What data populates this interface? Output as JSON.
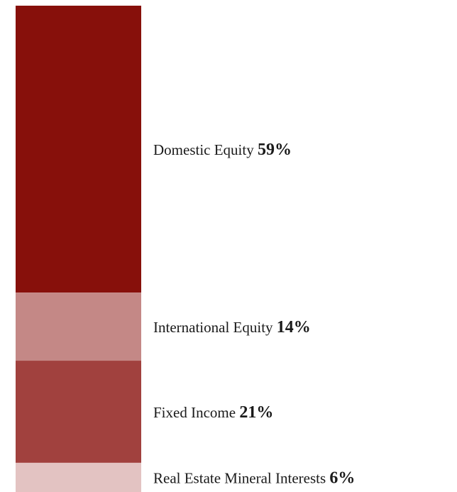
{
  "chart_data": {
    "type": "bar",
    "stacked": true,
    "orientation": "vertical",
    "title": "",
    "categories": [
      "Domestic Equity",
      "International Equity",
      "Fixed Income",
      "Real Estate Mineral Interests"
    ],
    "values": [
      59,
      14,
      21,
      6
    ],
    "value_labels": [
      "59%",
      "14%",
      "21%",
      "6%"
    ],
    "unit": "%",
    "colors": [
      "#87100b",
      "#c48886",
      "#a1413e",
      "#e3c3c2"
    ],
    "legend": "labels beside segments",
    "grid": false
  }
}
